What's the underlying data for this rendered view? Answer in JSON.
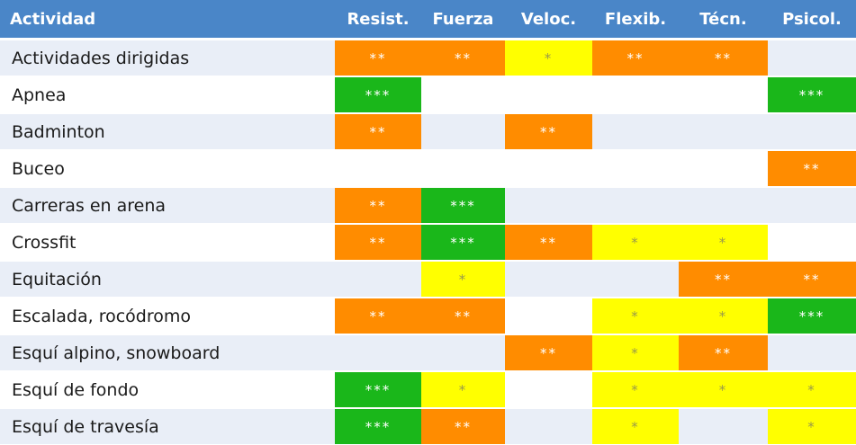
{
  "columns": [
    "Actividad",
    "Resist.",
    "Fuerza",
    "Veloc.",
    "Flexib.",
    "Técn.",
    "Psicol."
  ],
  "colors": {
    "green": "#1ab71a",
    "orange": "#ff8c00",
    "yellow": "#ffff00",
    "header": "#4a86c8",
    "row_alt": "#e9eef7"
  },
  "rows": [
    {
      "name": "Actividades dirigidas",
      "cells": [
        "**",
        "**",
        "*",
        "**",
        "**",
        ""
      ]
    },
    {
      "name": "Apnea",
      "cells": [
        "***",
        "",
        "",
        "",
        "",
        "***"
      ]
    },
    {
      "name": "Badminton",
      "cells": [
        "**",
        "",
        "**",
        "",
        "",
        ""
      ]
    },
    {
      "name": "Buceo",
      "cells": [
        "",
        "",
        "",
        "",
        "",
        "**"
      ]
    },
    {
      "name": "Carreras en arena",
      "cells": [
        "**",
        "***",
        "",
        "",
        "",
        ""
      ]
    },
    {
      "name": "Crossfit",
      "cells": [
        "**",
        "***",
        "**",
        "*",
        "*",
        ""
      ]
    },
    {
      "name": "Equitación",
      "cells": [
        "",
        "*",
        "",
        "",
        "**",
        "**"
      ]
    },
    {
      "name": "Escalada, rocódromo",
      "cells": [
        "**",
        "**",
        "",
        "*",
        "*",
        "***"
      ]
    },
    {
      "name": "Esquí alpino, snowboard",
      "cells": [
        "",
        "",
        "**",
        "*",
        "**",
        ""
      ]
    },
    {
      "name": "Esquí de fondo",
      "cells": [
        "***",
        "*",
        "",
        "*",
        "*",
        "*"
      ]
    },
    {
      "name": "Esquí de travesía",
      "cells": [
        "***",
        "**",
        "",
        "*",
        "",
        "*"
      ]
    }
  ]
}
